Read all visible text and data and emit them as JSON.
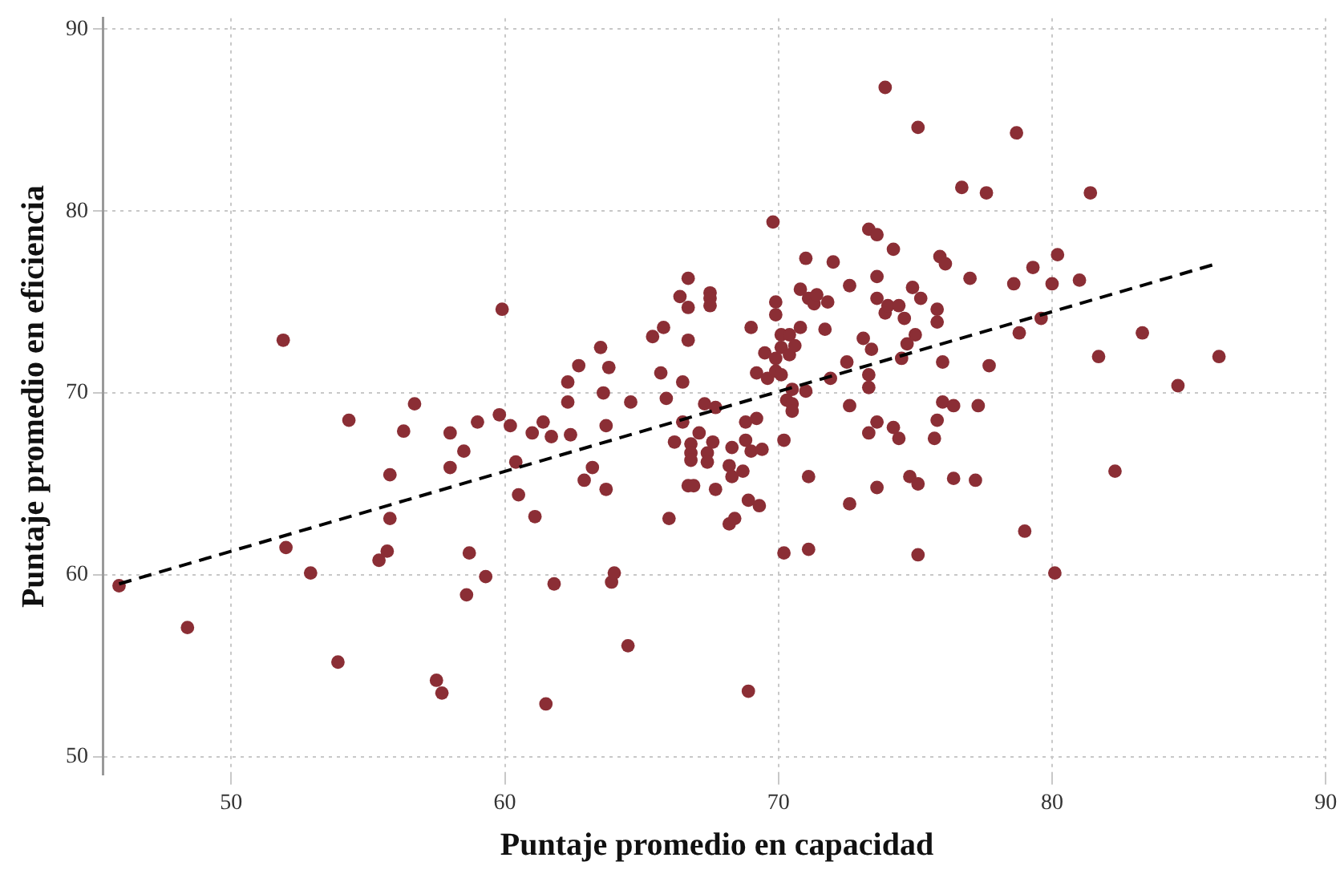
{
  "chart_data": {
    "type": "scatter",
    "xlabel": "Puntaje promedio en capacidad",
    "ylabel": "Puntaje promedio en eficiencia",
    "xlim": [
      45.3,
      90.2
    ],
    "ylim": [
      49,
      90.6
    ],
    "xticks": [
      50,
      60,
      70,
      80,
      90
    ],
    "yticks": [
      50,
      60,
      70,
      80,
      90
    ],
    "grid": true,
    "legend": false,
    "marker": "circle",
    "series": [
      {
        "type": "scatter",
        "color": "#8b2e35",
        "x": [
          45.9,
          48.4,
          51.9,
          52.0,
          52.9,
          53.9,
          54.3,
          55.4,
          55.7,
          55.8,
          55.8,
          56.3,
          56.7,
          57.5,
          57.7,
          58.0,
          58.0,
          58.5,
          58.6,
          58.7,
          59.0,
          59.3,
          59.8,
          59.9,
          60.2,
          60.4,
          60.5,
          61.0,
          61.1,
          61.4,
          61.5,
          61.7,
          61.8,
          62.3,
          62.3,
          62.4,
          62.7,
          62.9,
          63.2,
          63.5,
          63.6,
          63.7,
          63.7,
          63.8,
          63.9,
          64.0,
          64.5,
          64.6,
          65.4,
          65.7,
          65.8,
          65.9,
          66.0,
          66.2,
          66.4,
          66.5,
          66.5,
          66.7,
          66.7,
          66.7,
          66.7,
          66.8,
          66.8,
          66.8,
          66.9,
          67.1,
          67.3,
          67.4,
          67.4,
          67.5,
          67.5,
          67.5,
          67.6,
          67.7,
          67.7,
          68.2,
          68.2,
          68.3,
          68.3,
          68.4,
          68.7,
          68.8,
          68.8,
          68.9,
          68.9,
          69.0,
          69.0,
          69.2,
          69.2,
          69.3,
          69.4,
          69.5,
          69.6,
          69.8,
          69.9,
          69.9,
          69.9,
          69.9,
          70.1,
          70.1,
          70.1,
          70.2,
          70.2,
          70.3,
          70.4,
          70.4,
          70.5,
          70.5,
          70.5,
          70.6,
          70.8,
          70.8,
          71.0,
          71.0,
          71.1,
          71.1,
          71.1,
          71.3,
          71.4,
          71.7,
          71.8,
          71.9,
          72.0,
          72.5,
          72.6,
          72.6,
          72.6,
          73.1,
          73.3,
          73.3,
          73.3,
          73.3,
          73.4,
          73.6,
          73.6,
          73.6,
          73.6,
          73.6,
          73.9,
          73.9,
          74.0,
          74.2,
          74.2,
          74.4,
          74.4,
          74.5,
          74.6,
          74.7,
          74.8,
          74.9,
          75.0,
          75.1,
          75.1,
          75.1,
          75.2,
          75.7,
          75.8,
          75.8,
          75.8,
          75.9,
          76.0,
          76.0,
          76.1,
          76.4,
          76.4,
          76.7,
          77.0,
          77.2,
          77.3,
          77.6,
          77.7,
          78.6,
          78.7,
          78.8,
          79.0,
          79.3,
          79.6,
          80.0,
          80.1,
          80.2,
          81.0,
          81.4,
          81.7,
          82.3,
          83.3,
          84.6,
          86.1
        ],
        "values": [
          59.4,
          57.1,
          72.9,
          61.5,
          60.1,
          55.2,
          68.5,
          60.8,
          61.3,
          65.5,
          63.1,
          67.9,
          69.4,
          54.2,
          53.5,
          67.8,
          65.9,
          66.8,
          58.9,
          61.2,
          68.4,
          59.9,
          68.8,
          74.6,
          68.2,
          66.2,
          64.4,
          67.8,
          63.2,
          68.4,
          52.9,
          67.6,
          59.5,
          70.6,
          69.5,
          67.7,
          71.5,
          65.2,
          65.9,
          72.5,
          70.0,
          68.2,
          64.7,
          71.4,
          59.6,
          60.1,
          56.1,
          69.5,
          73.1,
          71.1,
          73.6,
          69.7,
          63.1,
          67.3,
          75.3,
          70.6,
          68.4,
          76.3,
          74.7,
          72.9,
          64.9,
          67.2,
          66.7,
          66.3,
          64.9,
          67.8,
          69.4,
          66.7,
          66.2,
          75.5,
          75.2,
          74.8,
          67.3,
          69.2,
          64.7,
          66.0,
          62.8,
          67.0,
          65.4,
          63.1,
          65.7,
          68.4,
          67.4,
          64.1,
          53.6,
          73.6,
          66.8,
          68.6,
          71.1,
          63.8,
          66.9,
          72.2,
          70.8,
          79.4,
          75.0,
          74.3,
          71.9,
          71.2,
          73.2,
          72.5,
          71.0,
          67.4,
          61.2,
          69.6,
          73.2,
          72.1,
          70.2,
          69.4,
          69.0,
          72.6,
          75.7,
          73.6,
          77.4,
          70.1,
          75.2,
          65.4,
          61.4,
          74.9,
          75.4,
          73.5,
          75.0,
          70.8,
          77.2,
          71.7,
          75.9,
          69.3,
          63.9,
          73.0,
          79.0,
          71.0,
          70.3,
          67.8,
          72.4,
          78.7,
          76.4,
          75.2,
          68.4,
          64.8,
          86.8,
          74.4,
          74.8,
          77.9,
          68.1,
          74.8,
          67.5,
          71.9,
          74.1,
          72.7,
          65.4,
          75.8,
          73.2,
          84.6,
          65.0,
          61.1,
          75.2,
          67.5,
          74.6,
          73.9,
          68.5,
          77.5,
          71.7,
          69.5,
          77.1,
          69.3,
          65.3,
          81.3,
          76.3,
          65.2,
          69.3,
          81.0,
          71.5,
          76.0,
          84.3,
          73.3,
          62.4,
          76.9,
          74.1,
          76.0,
          60.1,
          77.6,
          76.2,
          81.0,
          72.0,
          65.7,
          73.3,
          70.4,
          72.0
        ]
      },
      {
        "type": "line",
        "color": "#000000",
        "line_style": "dashed",
        "marker": "none",
        "x": [
          45.9,
          86.0
        ],
        "values": [
          59.5,
          77.1
        ]
      }
    ]
  }
}
